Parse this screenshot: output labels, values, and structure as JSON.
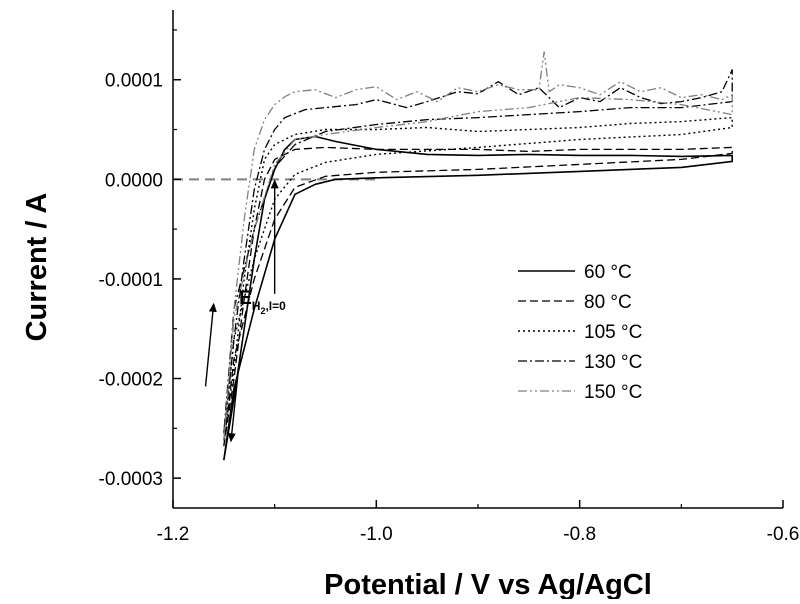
{
  "chart_data": {
    "type": "line",
    "title": "",
    "xlabel": "Potential / V vs Ag/AgCl",
    "ylabel": "Current / A",
    "xlim": [
      -1.2,
      -0.6
    ],
    "ylim": [
      -0.00033,
      0.00017
    ],
    "xticks": [
      {
        "value": -1.2,
        "label": "-1.2"
      },
      {
        "value": -1.0,
        "label": "-1.0"
      },
      {
        "value": -0.8,
        "label": "-0.8"
      },
      {
        "value": -0.6,
        "label": "-0.6"
      }
    ],
    "yticks": [
      {
        "value": 0.0001,
        "label": "0.0001"
      },
      {
        "value": 0.0,
        "label": "0.0000"
      },
      {
        "value": -0.0001,
        "label": "-0.0001"
      },
      {
        "value": -0.0002,
        "label": "-0.0002"
      },
      {
        "value": -0.0003,
        "label": "-0.0003"
      }
    ],
    "grid": false,
    "legend_position": "center-right",
    "colors": {
      "axis": "#000000",
      "zero_line": "#808080"
    },
    "series": [
      {
        "name": "60 °C",
        "dash": "solid",
        "color": "#000000",
        "width": 1.6,
        "x": [
          -1.15,
          -1.14,
          -1.13,
          -1.12,
          -1.11,
          -1.1,
          -1.09,
          -1.08,
          -1.06,
          -1.04,
          -1.0,
          -0.95,
          -0.9,
          -0.85,
          -0.8,
          -0.75,
          -0.7,
          -0.65,
          -0.65,
          -0.7,
          -0.8,
          -0.9,
          -1.0,
          -1.04,
          -1.06,
          -1.08,
          -1.1,
          -1.12,
          -1.14,
          -1.15
        ],
        "y": [
          -0.000282,
          -0.00022,
          -0.00015,
          -8e-05,
          -2e-05,
          1e-05,
          3e-05,
          4e-05,
          4.3e-05,
          3.8e-05,
          3e-05,
          2.5e-05,
          2.4e-05,
          2.5e-05,
          2.4e-05,
          2.4e-05,
          2.3e-05,
          2.4e-05,
          1.8e-05,
          1.2e-05,
          8e-06,
          4e-06,
          1.5e-06,
          0.0,
          -5e-06,
          -1.5e-05,
          -6e-05,
          -0.00013,
          -0.00021,
          -0.000282
        ]
      },
      {
        "name": "80 °C",
        "dash": "dashed",
        "color": "#000000",
        "width": 1.3,
        "x": [
          -1.15,
          -1.14,
          -1.13,
          -1.12,
          -1.11,
          -1.1,
          -1.08,
          -1.05,
          -1.0,
          -0.95,
          -0.9,
          -0.85,
          -0.8,
          -0.75,
          -0.7,
          -0.65,
          -0.65,
          -0.7,
          -0.8,
          -0.9,
          -1.0,
          -1.05,
          -1.08,
          -1.1,
          -1.12,
          -1.14,
          -1.15
        ],
        "y": [
          -0.000268,
          -0.0002,
          -0.00012,
          -5e-05,
          0.0,
          2e-05,
          3e-05,
          3.2e-05,
          3e-05,
          3e-05,
          3e-05,
          2.8e-05,
          3e-05,
          3e-05,
          3e-05,
          3.2e-05,
          2.6e-05,
          2e-05,
          1.5e-05,
          1e-05,
          7e-06,
          3e-06,
          -8e-06,
          -4e-05,
          -0.0001,
          -0.00018,
          -0.000268
        ]
      },
      {
        "name": "105 °C",
        "dash": "dotted",
        "color": "#000000",
        "width": 1.4,
        "x": [
          -1.15,
          -1.14,
          -1.13,
          -1.12,
          -1.11,
          -1.1,
          -1.08,
          -1.05,
          -1.0,
          -0.95,
          -0.9,
          -0.85,
          -0.8,
          -0.75,
          -0.7,
          -0.65,
          -0.65,
          -0.7,
          -0.8,
          -0.9,
          -1.0,
          -1.05,
          -1.08,
          -1.1,
          -1.12,
          -1.14,
          -1.15
        ],
        "y": [
          -0.000262,
          -0.00019,
          -0.0001,
          -3e-05,
          2e-05,
          3.5e-05,
          4.5e-05,
          5e-05,
          5e-05,
          5.2e-05,
          4.8e-05,
          5e-05,
          5.2e-05,
          5.6e-05,
          5.8e-05,
          6.2e-05,
          5.2e-05,
          4.5e-05,
          4e-05,
          3.2e-05,
          2.5e-05,
          1.7e-05,
          5e-06,
          -2e-05,
          -8e-05,
          -0.00016,
          -0.000262
        ]
      },
      {
        "name": "130 °C",
        "dash": "dashdot",
        "color": "#000000",
        "width": 1.3,
        "x": [
          -1.15,
          -1.145,
          -1.14,
          -1.13,
          -1.12,
          -1.11,
          -1.1,
          -1.09,
          -1.07,
          -1.05,
          -1.02,
          -1.0,
          -0.97,
          -0.95,
          -0.92,
          -0.9,
          -0.88,
          -0.86,
          -0.84,
          -0.82,
          -0.8,
          -0.78,
          -0.76,
          -0.74,
          -0.72,
          -0.7,
          -0.68,
          -0.66,
          -0.65,
          -0.65,
          -0.7,
          -0.75,
          -0.8,
          -0.85,
          -0.9,
          -0.95,
          -1.0,
          -1.05,
          -1.08,
          -1.1,
          -1.12,
          -1.14,
          -1.15
        ],
        "y": [
          -0.000255,
          -0.00021,
          -0.00016,
          -8e-05,
          -1e-05,
          3e-05,
          5e-05,
          6.2e-05,
          7e-05,
          7.2e-05,
          7.5e-05,
          8e-05,
          7.2e-05,
          7.8e-05,
          8.8e-05,
          8.6e-05,
          9.8e-05,
          8.5e-05,
          9.2e-05,
          7.2e-05,
          8.2e-05,
          7.8e-05,
          9.2e-05,
          8.2e-05,
          7.6e-05,
          7.8e-05,
          8.2e-05,
          8.8e-05,
          0.00011,
          7.8e-05,
          7.2e-05,
          7.2e-05,
          6.8e-05,
          6.5e-05,
          6.2e-05,
          6e-05,
          5.5e-05,
          4.8e-05,
          3.5e-05,
          1.2e-05,
          -5e-05,
          -0.00013,
          -0.000255
        ]
      },
      {
        "name": "150 °C",
        "dash": "dashdotdot",
        "color": "#808080",
        "width": 1.3,
        "x": [
          -1.15,
          -1.145,
          -1.14,
          -1.13,
          -1.12,
          -1.11,
          -1.1,
          -1.09,
          -1.08,
          -1.06,
          -1.04,
          -1.02,
          -1.0,
          -0.98,
          -0.96,
          -0.94,
          -0.92,
          -0.9,
          -0.88,
          -0.86,
          -0.84,
          -0.835,
          -0.83,
          -0.82,
          -0.8,
          -0.78,
          -0.76,
          -0.74,
          -0.72,
          -0.7,
          -0.68,
          -0.66,
          -0.65,
          -0.65,
          -0.7,
          -0.75,
          -0.8,
          -0.85,
          -0.9,
          -0.95,
          -1.0,
          -1.05,
          -1.08,
          -1.1,
          -1.12,
          -1.14,
          -1.15
        ],
        "y": [
          -0.000262,
          -0.0002,
          -0.00013,
          -4e-05,
          3e-05,
          6e-05,
          7.5e-05,
          8.3e-05,
          8.8e-05,
          9e-05,
          8.2e-05,
          9e-05,
          9.3e-05,
          8e-05,
          8.8e-05,
          7.8e-05,
          9.2e-05,
          8.8e-05,
          9.5e-05,
          9e-05,
          9e-05,
          0.000128,
          8.8e-05,
          9.5e-05,
          9.2e-05,
          8.5e-05,
          9.8e-05,
          8.8e-05,
          9.2e-05,
          8.2e-05,
          8.5e-05,
          8e-05,
          8.5e-05,
          6.5e-05,
          7.5e-05,
          8e-05,
          8.2e-05,
          7.2e-05,
          6.8e-05,
          5.8e-05,
          5.2e-05,
          4.5e-05,
          4e-05,
          1.5e-05,
          -5e-05,
          -0.00014,
          -0.000262
        ]
      }
    ],
    "reference_line": {
      "y": 0.0,
      "x_from": -1.2,
      "x_to": -1.0,
      "style": "dashed",
      "color": "#808080"
    },
    "annotations": [
      {
        "kind": "label",
        "text": "E",
        "sub": "H",
        "sub2": "2",
        "sub3": ",I=0",
        "x": -1.135,
        "y": -0.000125
      },
      {
        "kind": "arrow",
        "x1": -1.1,
        "y1": -0.000115,
        "x2": -1.1,
        "y2": -1e-06
      },
      {
        "kind": "arrow",
        "x1": -1.168,
        "y1": -0.000208,
        "x2": -1.16,
        "y2": -0.000125
      },
      {
        "kind": "arrow",
        "x1": -1.135,
        "y1": -0.000185,
        "x2": -1.143,
        "y2": -0.000263
      }
    ]
  }
}
